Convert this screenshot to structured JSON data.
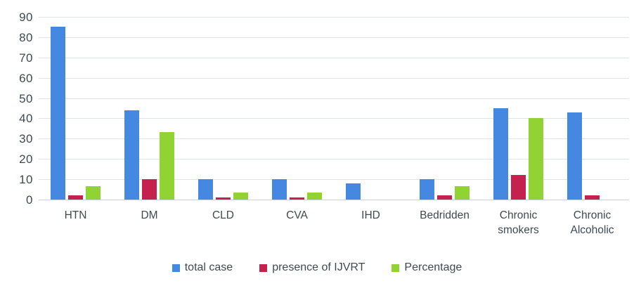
{
  "chart_data": {
    "type": "bar",
    "title": "",
    "categories": [
      "HTN",
      "DM",
      "CLD",
      "CVA",
      "IHD",
      "Bedridden",
      "Chronic smokers",
      "Chronic Alcoholic"
    ],
    "series": [
      {
        "name": "total case",
        "color": "#4488e2",
        "values": [
          85,
          44,
          10,
          10,
          8,
          10,
          45,
          43
        ]
      },
      {
        "name": "presence of IJVRT",
        "color": "#c5214f",
        "values": [
          2,
          10,
          1,
          1,
          0,
          2,
          12,
          2
        ]
      },
      {
        "name": "Percentage",
        "color": "#91d333",
        "values": [
          6.7,
          33.3,
          3.3,
          3.3,
          0,
          6.7,
          40,
          0
        ]
      }
    ],
    "ylim": [
      0,
      90
    ],
    "ytick_step": 10,
    "ytick_labels": [
      "0",
      "10",
      "20",
      "30",
      "40",
      "50",
      "60",
      "70",
      "80",
      "90"
    ],
    "grid": true,
    "legend_position": "bottom",
    "colors": {
      "gridline": "#dde4ec",
      "baseline": "#c9d3de",
      "text": "#3e4a52",
      "background": "#ffffff"
    }
  }
}
